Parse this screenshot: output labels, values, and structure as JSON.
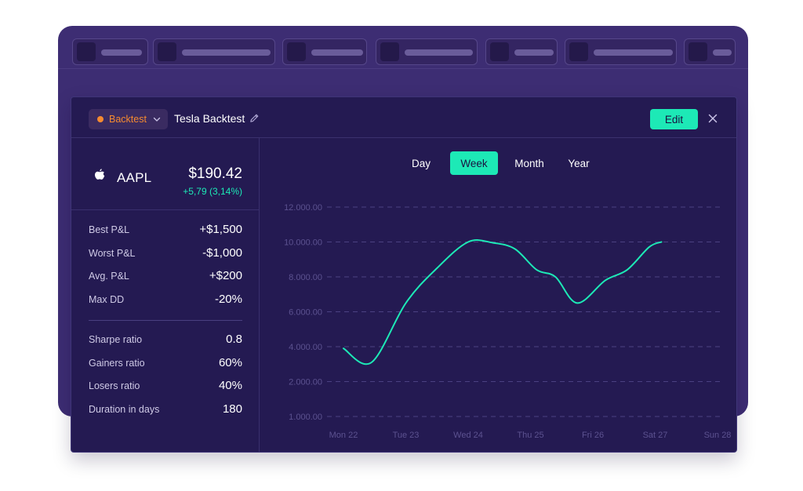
{
  "background_app": {
    "tab_count": 7
  },
  "modal": {
    "type_selector": {
      "label": "Backtest",
      "dot_color": "#f58a30",
      "icon": "chevron-down-icon"
    },
    "title": "Tesla Backtest",
    "edit_title_icon": "pencil-icon",
    "edit_button": "Edit",
    "close_icon": "close-icon"
  },
  "stock": {
    "icon": "apple-icon",
    "ticker": "AAPL",
    "price": "$190.42",
    "change": "+5,79 (3,14%)"
  },
  "stats_group_1": [
    {
      "label": "Best P&L",
      "value": "+$1,500"
    },
    {
      "label": "Worst P&L",
      "value": "-$1,000"
    },
    {
      "label": "Avg. P&L",
      "value": "+$200"
    },
    {
      "label": "Max DD",
      "value": "-20%"
    }
  ],
  "stats_group_2": [
    {
      "label": "Sharpe ratio",
      "value": "0.8"
    },
    {
      "label": "Gainers ratio",
      "value": "60%"
    },
    {
      "label": "Losers ratio",
      "value": "40%"
    },
    {
      "label": "Duration in days",
      "value": "180"
    }
  ],
  "range_tabs": [
    {
      "label": "Day",
      "active": false
    },
    {
      "label": "Week",
      "active": true
    },
    {
      "label": "Month",
      "active": false
    },
    {
      "label": "Year",
      "active": false
    }
  ],
  "colors": {
    "accent": "#1de9b6",
    "warning": "#f58a30",
    "panel": "#241a52",
    "frame": "#3d2d73"
  },
  "chart_data": {
    "type": "line",
    "categories": [
      "Mon 22",
      "Tue 23",
      "Wed 24",
      "Thu 25",
      "Fri 26",
      "Sat 27",
      "Sun 28"
    ],
    "y_ticks": [
      "12.000.00",
      "10.000.00",
      "8.000.00",
      "6.000.00",
      "4.000.00",
      "2.000.00",
      "1.000.00"
    ],
    "ylim": [
      1000,
      12000
    ],
    "grid": true,
    "series": [
      {
        "color": "#1de9b6",
        "points": [
          {
            "x": 0.0,
            "y": 3900
          },
          {
            "x": 0.45,
            "y": 3100
          },
          {
            "x": 1.0,
            "y": 6500
          },
          {
            "x": 1.5,
            "y": 8500
          },
          {
            "x": 2.0,
            "y": 10000
          },
          {
            "x": 2.4,
            "y": 9950
          },
          {
            "x": 2.75,
            "y": 9600
          },
          {
            "x": 3.1,
            "y": 8400
          },
          {
            "x": 3.4,
            "y": 8000
          },
          {
            "x": 3.75,
            "y": 6500
          },
          {
            "x": 4.2,
            "y": 7800
          },
          {
            "x": 4.55,
            "y": 8400
          },
          {
            "x": 4.9,
            "y": 9700
          },
          {
            "x": 5.1,
            "y": 10000
          }
        ]
      }
    ]
  }
}
